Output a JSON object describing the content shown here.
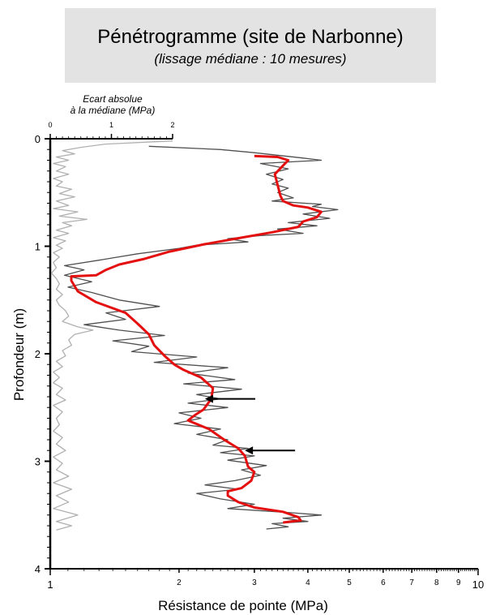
{
  "title": "Pénétrogramme (site de Narbonne)",
  "subtitle": "(lissage médiane : 10 mesures)",
  "colors": {
    "median": "#e41010",
    "raw": "#505050",
    "deviation": "#b0b0b0",
    "title_bg": "#e3e3e3"
  },
  "chart_data": {
    "type": "line",
    "title": "Pénétrogramme (site de Narbonne)",
    "subtitle": "(lissage médiane : 10 mesures)",
    "xlabel": "Résistance de pointe (MPa)",
    "ylabel": "Profondeur (m)",
    "x_scale": "log",
    "xlim": [
      1,
      10
    ],
    "ylim": [
      0,
      4
    ],
    "y_inverted": true,
    "x_ticks": [
      "1",
      "2",
      "3",
      "4",
      "5",
      "6",
      "7",
      "8",
      "9",
      "10"
    ],
    "y_ticks": [
      "0",
      "1",
      "2",
      "3",
      "4"
    ],
    "top_axis": {
      "label_line1": "Ecart absolue",
      "label_line2": "à la médiane (MPa)",
      "ticks": [
        "0",
        "1",
        "2"
      ],
      "range": [
        0,
        2
      ]
    },
    "series": [
      {
        "role": "median",
        "points": [
          [
            3.0,
            0.16
          ],
          [
            3.4,
            0.17
          ],
          [
            3.6,
            0.2
          ],
          [
            3.5,
            0.25
          ],
          [
            3.35,
            0.33
          ],
          [
            3.4,
            0.43
          ],
          [
            3.45,
            0.53
          ],
          [
            3.5,
            0.58
          ],
          [
            3.7,
            0.62
          ],
          [
            4.0,
            0.64
          ],
          [
            4.3,
            0.68
          ],
          [
            4.2,
            0.73
          ],
          [
            3.9,
            0.77
          ],
          [
            3.8,
            0.82
          ],
          [
            3.3,
            0.87
          ],
          [
            2.8,
            0.92
          ],
          [
            2.3,
            0.98
          ],
          [
            1.9,
            1.05
          ],
          [
            1.65,
            1.12
          ],
          [
            1.45,
            1.17
          ],
          [
            1.35,
            1.22
          ],
          [
            1.28,
            1.27
          ],
          [
            1.12,
            1.28
          ],
          [
            1.12,
            1.32
          ],
          [
            1.16,
            1.42
          ],
          [
            1.28,
            1.52
          ],
          [
            1.5,
            1.62
          ],
          [
            1.6,
            1.72
          ],
          [
            1.7,
            1.82
          ],
          [
            1.75,
            1.92
          ],
          [
            1.85,
            2.02
          ],
          [
            1.95,
            2.1
          ],
          [
            2.05,
            2.15
          ],
          [
            2.25,
            2.22
          ],
          [
            2.4,
            2.32
          ],
          [
            2.38,
            2.42
          ],
          [
            2.28,
            2.52
          ],
          [
            2.18,
            2.57
          ],
          [
            2.1,
            2.62
          ],
          [
            2.35,
            2.7
          ],
          [
            2.55,
            2.8
          ],
          [
            2.75,
            2.88
          ],
          [
            2.85,
            2.95
          ],
          [
            2.9,
            3.05
          ],
          [
            3.0,
            3.1
          ],
          [
            2.95,
            3.18
          ],
          [
            2.8,
            3.25
          ],
          [
            2.6,
            3.28
          ],
          [
            2.6,
            3.32
          ],
          [
            2.75,
            3.38
          ],
          [
            3.0,
            3.43
          ],
          [
            3.5,
            3.47
          ],
          [
            3.8,
            3.52
          ],
          [
            3.85,
            3.55
          ],
          [
            3.5,
            3.57
          ]
        ]
      },
      {
        "role": "raw",
        "points": [
          [
            1.7,
            0.07
          ],
          [
            2.5,
            0.1
          ],
          [
            3.0,
            0.13
          ],
          [
            3.9,
            0.18
          ],
          [
            4.3,
            0.2
          ],
          [
            3.1,
            0.23
          ],
          [
            3.6,
            0.28
          ],
          [
            3.2,
            0.33
          ],
          [
            3.5,
            0.38
          ],
          [
            3.3,
            0.42
          ],
          [
            3.6,
            0.46
          ],
          [
            3.4,
            0.5
          ],
          [
            3.7,
            0.55
          ],
          [
            3.3,
            0.58
          ],
          [
            4.3,
            0.61
          ],
          [
            4.1,
            0.63
          ],
          [
            4.7,
            0.66
          ],
          [
            3.9,
            0.7
          ],
          [
            4.5,
            0.74
          ],
          [
            3.6,
            0.78
          ],
          [
            4.2,
            0.81
          ],
          [
            3.4,
            0.84
          ],
          [
            3.9,
            0.88
          ],
          [
            3.1,
            0.9
          ],
          [
            2.6,
            0.93
          ],
          [
            2.9,
            0.96
          ],
          [
            2.2,
            0.99
          ],
          [
            2.0,
            1.02
          ],
          [
            1.6,
            1.07
          ],
          [
            1.3,
            1.13
          ],
          [
            1.08,
            1.18
          ],
          [
            1.2,
            1.22
          ],
          [
            1.08,
            1.27
          ],
          [
            1.25,
            1.33
          ],
          [
            1.1,
            1.38
          ],
          [
            1.25,
            1.43
          ],
          [
            1.45,
            1.5
          ],
          [
            1.8,
            1.56
          ],
          [
            1.35,
            1.62
          ],
          [
            1.5,
            1.68
          ],
          [
            1.2,
            1.73
          ],
          [
            1.45,
            1.78
          ],
          [
            1.85,
            1.83
          ],
          [
            1.4,
            1.88
          ],
          [
            1.7,
            1.93
          ],
          [
            1.55,
            1.98
          ],
          [
            2.2,
            2.03
          ],
          [
            1.75,
            2.08
          ],
          [
            2.6,
            2.13
          ],
          [
            2.1,
            2.18
          ],
          [
            2.7,
            2.24
          ],
          [
            2.05,
            2.28
          ],
          [
            2.8,
            2.33
          ],
          [
            2.2,
            2.38
          ],
          [
            2.5,
            2.42
          ],
          [
            2.1,
            2.46
          ],
          [
            2.6,
            2.5
          ],
          [
            2.0,
            2.55
          ],
          [
            2.25,
            2.6
          ],
          [
            1.95,
            2.65
          ],
          [
            2.5,
            2.7
          ],
          [
            2.2,
            2.75
          ],
          [
            2.6,
            2.8
          ],
          [
            2.4,
            2.85
          ],
          [
            2.9,
            2.88
          ],
          [
            2.5,
            2.92
          ],
          [
            3.0,
            2.95
          ],
          [
            2.6,
            2.99
          ],
          [
            3.2,
            3.04
          ],
          [
            2.8,
            3.08
          ],
          [
            3.1,
            3.13
          ],
          [
            2.7,
            3.18
          ],
          [
            2.3,
            3.22
          ],
          [
            2.75,
            3.26
          ],
          [
            2.2,
            3.3
          ],
          [
            2.5,
            3.35
          ],
          [
            3.0,
            3.4
          ],
          [
            2.6,
            3.44
          ],
          [
            3.7,
            3.48
          ],
          [
            4.3,
            3.5
          ],
          [
            3.5,
            3.53
          ],
          [
            4.0,
            3.56
          ],
          [
            3.3,
            3.58
          ],
          [
            3.6,
            3.61
          ],
          [
            3.2,
            3.63
          ]
        ]
      },
      {
        "role": "deviation",
        "points": [
          [
            2.0,
            0.02
          ],
          [
            0.9,
            0.05
          ],
          [
            0.5,
            0.08
          ],
          [
            0.2,
            0.11
          ],
          [
            0.4,
            0.14
          ],
          [
            0.1,
            0.17
          ],
          [
            0.3,
            0.2
          ],
          [
            0.05,
            0.23
          ],
          [
            0.25,
            0.26
          ],
          [
            0.1,
            0.3
          ],
          [
            0.3,
            0.33
          ],
          [
            0.05,
            0.37
          ],
          [
            0.2,
            0.4
          ],
          [
            0.1,
            0.44
          ],
          [
            0.35,
            0.47
          ],
          [
            0.15,
            0.51
          ],
          [
            0.4,
            0.54
          ],
          [
            0.1,
            0.58
          ],
          [
            0.3,
            0.62
          ],
          [
            0.05,
            0.65
          ],
          [
            0.45,
            0.68
          ],
          [
            0.15,
            0.72
          ],
          [
            0.6,
            0.75
          ],
          [
            0.2,
            0.78
          ],
          [
            0.35,
            0.81
          ],
          [
            0.1,
            0.85
          ],
          [
            0.3,
            0.88
          ],
          [
            0.05,
            0.92
          ],
          [
            0.25,
            0.95
          ],
          [
            0.1,
            0.99
          ],
          [
            0.2,
            1.02
          ],
          [
            0.05,
            1.06
          ],
          [
            0.15,
            1.1
          ],
          [
            0.05,
            1.15
          ],
          [
            0.1,
            1.2
          ],
          [
            0.02,
            1.25
          ],
          [
            0.1,
            1.3
          ],
          [
            0.15,
            1.35
          ],
          [
            0.1,
            1.4
          ],
          [
            0.2,
            1.45
          ],
          [
            0.1,
            1.5
          ],
          [
            0.15,
            1.55
          ],
          [
            0.25,
            1.6
          ],
          [
            0.3,
            1.65
          ],
          [
            0.2,
            1.7
          ],
          [
            0.45,
            1.75
          ],
          [
            0.7,
            1.78
          ],
          [
            0.4,
            1.82
          ],
          [
            0.3,
            1.87
          ],
          [
            0.35,
            1.92
          ],
          [
            0.2,
            1.97
          ],
          [
            0.25,
            2.02
          ],
          [
            0.1,
            2.07
          ],
          [
            0.2,
            2.12
          ],
          [
            0.05,
            2.17
          ],
          [
            0.15,
            2.22
          ],
          [
            0.05,
            2.27
          ],
          [
            0.2,
            2.32
          ],
          [
            0.1,
            2.38
          ],
          [
            0.25,
            2.43
          ],
          [
            0.05,
            2.48
          ],
          [
            0.2,
            2.54
          ],
          [
            0.1,
            2.6
          ],
          [
            0.15,
            2.66
          ],
          [
            0.05,
            2.72
          ],
          [
            0.2,
            2.78
          ],
          [
            0.1,
            2.84
          ],
          [
            0.25,
            2.9
          ],
          [
            0.05,
            2.96
          ],
          [
            0.2,
            3.02
          ],
          [
            0.1,
            3.08
          ],
          [
            0.3,
            3.14
          ],
          [
            0.05,
            3.2
          ],
          [
            0.35,
            3.26
          ],
          [
            0.1,
            3.32
          ],
          [
            0.3,
            3.38
          ],
          [
            0.05,
            3.44
          ],
          [
            0.45,
            3.5
          ],
          [
            0.1,
            3.56
          ],
          [
            0.35,
            3.6
          ],
          [
            0.1,
            3.64
          ]
        ]
      }
    ],
    "annotations": [
      {
        "type": "arrow",
        "depth": 2.42,
        "target_x": 2.3
      },
      {
        "type": "arrow",
        "depth": 2.9,
        "target_x": 2.85
      }
    ]
  }
}
